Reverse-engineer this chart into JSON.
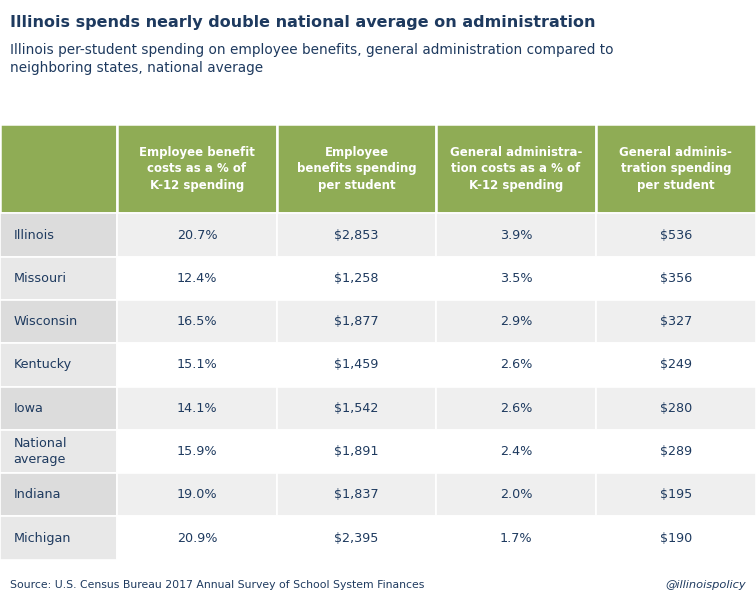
{
  "title": "Illinois spends nearly double national average on administration",
  "subtitle": "Illinois per-student spending on employee benefits, general administration compared to\nneighboring states, national average",
  "col_headers": [
    "Employee benefit\ncosts as a % of\nK-12 spending",
    "Employee\nbenefits spending\nper student",
    "General administra-\ntion costs as a % of\nK-12 spending",
    "General adminis-\ntration spending\nper student"
  ],
  "rows": [
    [
      "Illinois",
      "20.7%",
      "$2,853",
      "3.9%",
      "$536"
    ],
    [
      "Missouri",
      "12.4%",
      "$1,258",
      "3.5%",
      "$356"
    ],
    [
      "Wisconsin",
      "16.5%",
      "$1,877",
      "2.9%",
      "$327"
    ],
    [
      "Kentucky",
      "15.1%",
      "$1,459",
      "2.6%",
      "$249"
    ],
    [
      "Iowa",
      "14.1%",
      "$1,542",
      "2.6%",
      "$280"
    ],
    [
      "National\naverage",
      "15.9%",
      "$1,891",
      "2.4%",
      "$289"
    ],
    [
      "Indiana",
      "19.0%",
      "$1,837",
      "2.0%",
      "$195"
    ],
    [
      "Michigan",
      "20.9%",
      "$2,395",
      "1.7%",
      "$190"
    ]
  ],
  "header_bg": "#8fac55",
  "header_text": "#ffffff",
  "row_bg_light": "#efefef",
  "row_bg_white": "#ffffff",
  "first_col_bg_light": "#dcdcdc",
  "first_col_bg_white": "#e8e8e8",
  "row_text": "#1e3a5f",
  "source_text": "Source: U.S. Census Bureau 2017 Annual Survey of School System Finances",
  "watermark": "@illinoispolicy",
  "bg_color": "#ffffff",
  "title_color": "#1e3a5f",
  "subtitle_color": "#1e3a5f"
}
